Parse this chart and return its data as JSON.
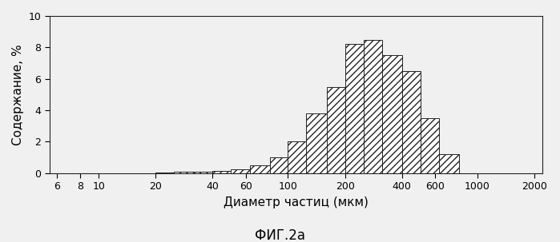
{
  "title": "ФИГ.2a",
  "xlabel": "Диаметр частиц (мкм)",
  "ylabel": "Содержание, %",
  "ylim": [
    0,
    10
  ],
  "yticks": [
    0,
    2,
    4,
    6,
    8,
    10
  ],
  "xticks": [
    6,
    8,
    10,
    20,
    40,
    60,
    100,
    200,
    400,
    600,
    1000,
    2000
  ],
  "xlim_log": [
    5.5,
    2200
  ],
  "bar_edges": [
    20,
    25,
    32,
    40,
    50,
    63,
    80,
    100,
    125,
    160,
    200,
    250,
    315,
    400,
    500,
    630,
    800
  ],
  "bar_heights": [
    0.05,
    0.07,
    0.1,
    0.15,
    0.25,
    0.5,
    1.0,
    2.0,
    3.8,
    5.5,
    8.2,
    8.5,
    7.5,
    6.5,
    3.5,
    1.2
  ],
  "hatch": "////",
  "facecolor": "white",
  "edgecolor": "#222222",
  "background_color": "#f0f0f0",
  "title_fontsize": 12,
  "axis_label_fontsize": 11,
  "tick_fontsize": 9
}
